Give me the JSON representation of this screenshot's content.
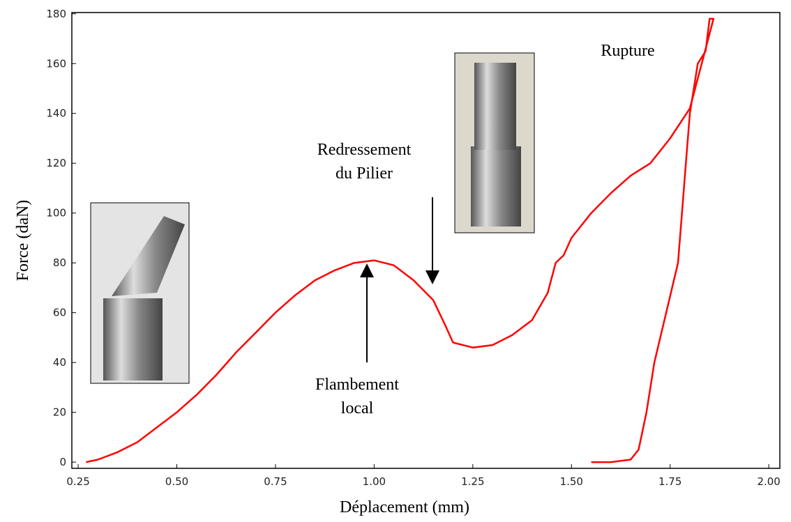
{
  "chart_data": {
    "type": "line",
    "x_label": "Déplacement (mm)",
    "y_label": "Force (daN)",
    "x": [
      0.27,
      0.3,
      0.35,
      0.4,
      0.45,
      0.5,
      0.55,
      0.6,
      0.65,
      0.7,
      0.75,
      0.8,
      0.85,
      0.9,
      0.95,
      1.0,
      1.05,
      1.1,
      1.15,
      1.18,
      1.2,
      1.25,
      1.3,
      1.35,
      1.4,
      1.44,
      1.46,
      1.48,
      1.5,
      1.55,
      1.6,
      1.65,
      1.7,
      1.75,
      1.8,
      1.83,
      1.86,
      1.85,
      1.84,
      1.82,
      1.81,
      1.8,
      1.79,
      1.78,
      1.77,
      1.74,
      1.71,
      1.69,
      1.67,
      1.65,
      1.6,
      1.55
    ],
    "values": [
      0,
      1,
      4,
      8,
      14,
      20,
      27,
      35,
      44,
      52,
      60,
      67,
      73,
      77,
      80,
      81,
      79,
      73,
      65,
      55,
      48,
      46,
      47,
      51,
      57,
      68,
      80,
      83,
      90,
      100,
      108,
      115,
      120,
      130,
      142,
      160,
      178,
      178,
      165,
      160,
      150,
      140,
      120,
      100,
      80,
      60,
      40,
      20,
      5,
      1,
      0,
      0
    ],
    "color": "#ff0000",
    "xlim": [
      0.234,
      2.028
    ],
    "ylim": [
      -2.5,
      180.5
    ],
    "xticks": [
      0.25,
      {
        "value": 0.5,
        "label": "0.50"
      },
      0.75,
      {
        "value": 1,
        "label": "1.00"
      },
      1.25,
      {
        "value": 1.5,
        "label": "1.50"
      },
      1.75,
      {
        "value": 2,
        "label": "2.00"
      }
    ],
    "yticks": [
      0,
      20,
      40,
      60,
      80,
      100,
      120,
      140,
      160,
      180
    ],
    "annotations": [
      {
        "text": [
          "Rupture"
        ]
      },
      {
        "text": [
          "Redressement",
          "du Pilier"
        ]
      },
      {
        "text": [
          "Flambement",
          "local"
        ]
      }
    ]
  }
}
